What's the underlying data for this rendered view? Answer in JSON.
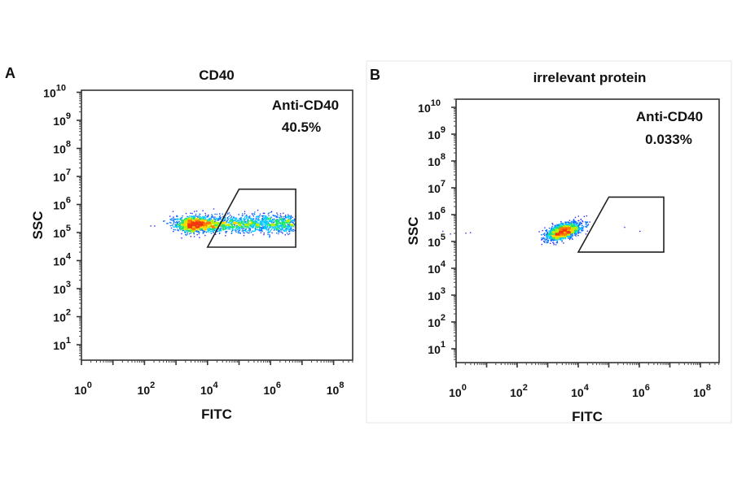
{
  "chart_data": [
    {
      "type": "scatter",
      "panel_label": "A",
      "title": "CD40",
      "xlabel": "FITC",
      "ylabel": "SSC",
      "x_scale": "log",
      "y_scale": "log",
      "xlim": [
        1,
        400000000
      ],
      "ylim": [
        3,
        10000000000
      ],
      "x_tick_exponents": [
        0,
        2,
        4,
        6,
        8
      ],
      "y_tick_exponents": [
        1,
        2,
        3,
        4,
        5,
        6,
        7,
        8,
        9,
        10
      ],
      "gate": {
        "name": "Anti-CD40",
        "percent": "40.5%",
        "vertices": [
          [
            10000,
            30000
          ],
          [
            100000,
            3500000
          ],
          [
            6300000,
            3500000
          ],
          [
            6300000,
            30000
          ]
        ]
      },
      "population": {
        "center": [
          4000,
          200000
        ],
        "x_range": [
          1000,
          6300000
        ],
        "y_range": [
          50000,
          900000
        ],
        "color_scale": "density: blue-cyan-green-yellow-red"
      }
    },
    {
      "type": "scatter",
      "panel_label": "B",
      "title": "irrelevant protein",
      "xlabel": "FITC",
      "ylabel": "SSC",
      "x_scale": "log",
      "y_scale": "log",
      "xlim": [
        1,
        400000000
      ],
      "ylim": [
        3,
        10000000000
      ],
      "x_tick_exponents": [
        0,
        2,
        4,
        6,
        8
      ],
      "y_tick_exponents": [
        1,
        2,
        3,
        4,
        5,
        6,
        7,
        8,
        9,
        10
      ],
      "gate": {
        "name": "Anti-CD40",
        "percent": "0.033%",
        "vertices": [
          [
            10000,
            40000
          ],
          [
            100000,
            4500000
          ],
          [
            6300000,
            4500000
          ],
          [
            6300000,
            40000
          ]
        ]
      },
      "population": {
        "center": [
          3200,
          250000
        ],
        "x_range": [
          400,
          20000
        ],
        "y_range": [
          60000,
          1000000
        ],
        "color_scale": "density: blue-cyan-green-yellow-red"
      }
    }
  ]
}
